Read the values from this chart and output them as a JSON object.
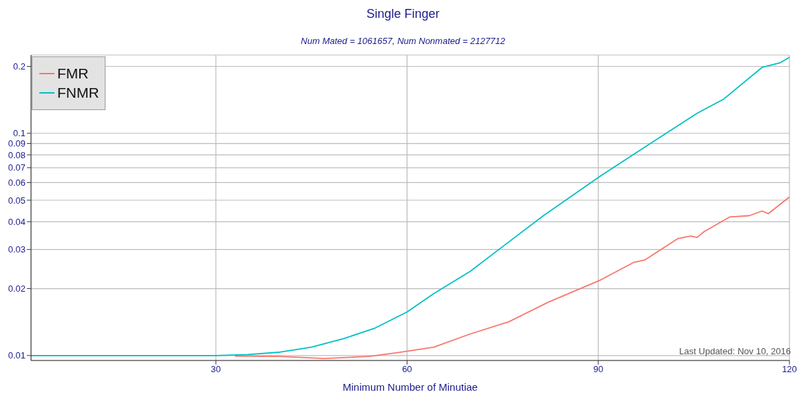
{
  "chart_data": {
    "type": "line",
    "title": "Single Finger",
    "subtitle": "Num Mated = 1061657, Num Nonmated = 2127712",
    "xlabel": "Minimum Number of Minutiae",
    "annotations": [
      "Last Updated: Nov 10, 2016"
    ],
    "series": [
      {
        "name": "FMR",
        "color": "#f8766d",
        "x": [
          33,
          40,
          47,
          54,
          58.5,
          64.2,
          69.9,
          76,
          82.2,
          90.4,
          95.5,
          97.3,
          102.5,
          104.5,
          105.5,
          106.6,
          110.6,
          113.7,
          115.7,
          116.7,
          120
        ],
        "values": [
          0.00995,
          0.0099,
          0.0097,
          0.0099,
          0.0103,
          0.0109,
          0.0125,
          0.0142,
          0.0174,
          0.0219,
          0.0262,
          0.0269,
          0.0336,
          0.0345,
          0.034,
          0.0361,
          0.042,
          0.0426,
          0.0447,
          0.0435,
          0.0517
        ]
      },
      {
        "name": "FNMR",
        "color": "#00bfc4",
        "x": [
          1,
          10,
          20,
          30,
          35,
          40,
          45,
          50,
          55,
          60,
          64.2,
          69.9,
          74.8,
          81.4,
          90.4,
          98.4,
          105.5,
          109.6,
          115.7,
          118.6,
          120
        ],
        "values": [
          0.01,
          0.01,
          0.01,
          0.01,
          0.0101,
          0.01035,
          0.0109,
          0.0119,
          0.0133,
          0.0157,
          0.019,
          0.0239,
          0.0306,
          0.0426,
          0.0644,
          0.0908,
          0.123,
          0.142,
          0.198,
          0.208,
          0.22
        ]
      }
    ],
    "xlim": [
      1,
      120
    ],
    "xticks": [
      30,
      60,
      90,
      120
    ],
    "ylim": [
      0.0095,
      0.225
    ],
    "yticks": [
      0.01,
      0.02,
      0.03,
      0.04,
      0.05,
      0.06,
      0.07,
      0.08,
      0.09,
      0.1,
      0.2
    ],
    "log": "y",
    "grid": true,
    "legend": "top left",
    "line_style": "solid",
    "marker": "none"
  }
}
